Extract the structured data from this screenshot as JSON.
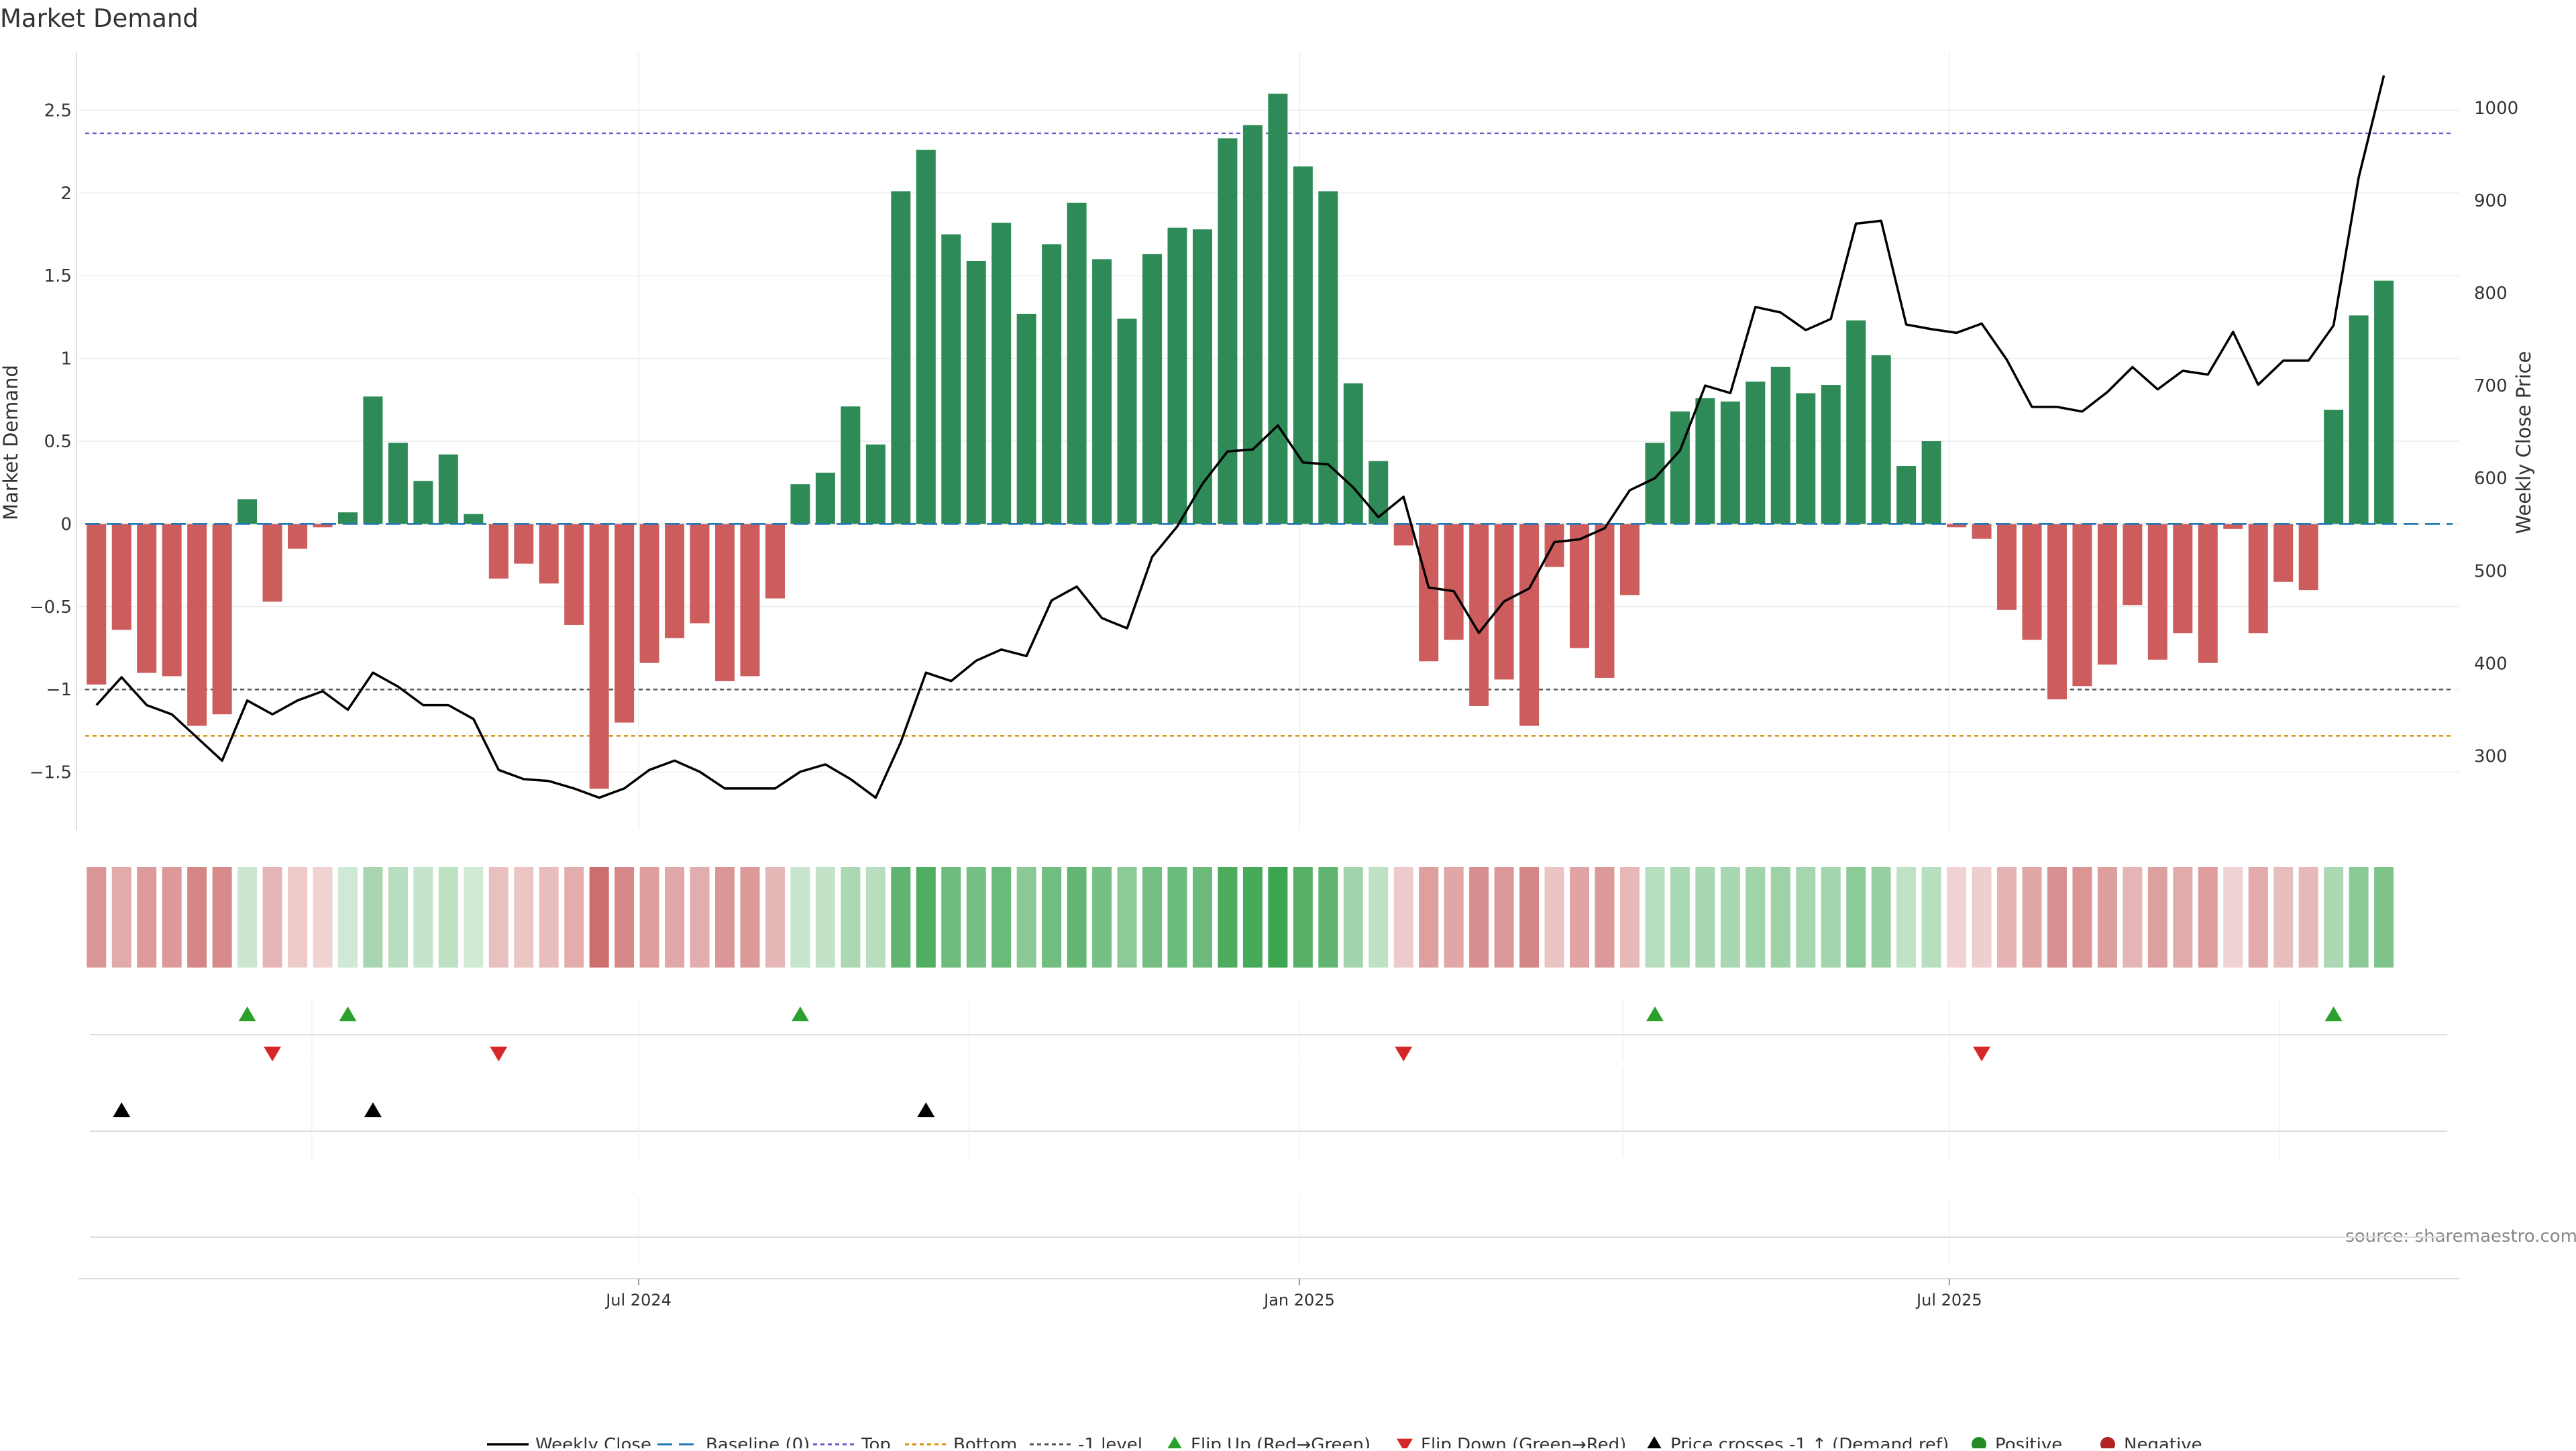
{
  "chart_data": {
    "type": "bar",
    "title": "Market Demand",
    "ylabel_left": "Market Demand",
    "ylabel_right": "Weekly Close Price",
    "source": "source: sharemaestro.com",
    "x_range": [
      "2024-01-27",
      "2025-11-20"
    ],
    "x_ticks": [
      {
        "date": "2024-07-01",
        "label": "Jul 2024"
      },
      {
        "date": "2025-01-01",
        "label": "Jan 2025"
      },
      {
        "date": "2025-07-01",
        "label": "Jul 2025"
      }
    ],
    "weeks": {
      "start": "2024-02-01",
      "step_days": 7,
      "count": 92
    },
    "y_left": {
      "range": [
        -1.85,
        2.85
      ],
      "ticks": [
        -1.5,
        -1,
        -0.5,
        0,
        0.5,
        1,
        1.5,
        2,
        2.5
      ],
      "tick_labels": [
        "−1.5",
        "−1",
        "−0.5",
        "0",
        "0.5",
        "1",
        "1.5",
        "2",
        "2.5"
      ]
    },
    "y_right": {
      "range": [
        220,
        1060
      ],
      "ticks": [
        300,
        400,
        500,
        600,
        700,
        800,
        900,
        1000
      ],
      "tick_labels": [
        "300",
        "400",
        "500",
        "600",
        "700",
        "800",
        "900",
        "1000"
      ]
    },
    "demand": [
      -0.97,
      -0.64,
      -0.9,
      -0.92,
      -1.22,
      -1.15,
      0.15,
      -0.47,
      -0.15,
      -0.02,
      0.07,
      0.77,
      0.49,
      0.26,
      0.42,
      0.06,
      -0.33,
      -0.24,
      -0.36,
      -0.61,
      -1.6,
      -1.2,
      -0.84,
      -0.69,
      -0.6,
      -0.95,
      -0.92,
      -0.45,
      0.24,
      0.31,
      0.71,
      0.48,
      2.01,
      2.26,
      1.75,
      1.59,
      1.82,
      1.27,
      1.69,
      1.94,
      1.6,
      1.24,
      1.63,
      1.79,
      1.78,
      2.33,
      2.41,
      2.6,
      2.16,
      2.01,
      0.85,
      0.38,
      -0.13,
      -0.83,
      -0.7,
      -1.1,
      -0.94,
      -1.22,
      -0.26,
      -0.75,
      -0.93,
      -0.43,
      0.49,
      0.68,
      0.76,
      0.74,
      0.86,
      0.95,
      0.79,
      0.84,
      1.23,
      1.02,
      0.35,
      0.5,
      -0.02,
      -0.09,
      -0.52,
      -0.7,
      -1.06,
      -0.98,
      -0.85,
      -0.49,
      -0.82,
      -0.66,
      -0.84,
      -0.03,
      -0.66,
      -0.35,
      -0.4,
      0.69,
      1.26,
      1.47
    ],
    "weekly_close": [
      355,
      385,
      355,
      345,
      320,
      295,
      360,
      345,
      360,
      370,
      350,
      390,
      375,
      355,
      355,
      340,
      285,
      275,
      273,
      265,
      255,
      265,
      285,
      295,
      283,
      265,
      265,
      265,
      283,
      291,
      275,
      255,
      315,
      390,
      381,
      403,
      415,
      408,
      468,
      483,
      449,
      438,
      515,
      548,
      594,
      629,
      631,
      657,
      617,
      615,
      590,
      558,
      580,
      482,
      478,
      433,
      467,
      481,
      531,
      534,
      546,
      587,
      600,
      630,
      700,
      692,
      785,
      779,
      760,
      772,
      875,
      878,
      766,
      761,
      757,
      767,
      728,
      677,
      677,
      672,
      693,
      720,
      696,
      716,
      712,
      758,
      701,
      727,
      727,
      765,
      925,
      1035
    ],
    "reference_lines": [
      {
        "name": "Baseline (0)",
        "value": 0,
        "color": "#1f77b4"
      },
      {
        "name": "Top",
        "value": 2.36,
        "color": "#6a5acd"
      },
      {
        "name": "Bottom",
        "value": -1.28,
        "color": "#d4900a"
      },
      {
        "name": "-1 level",
        "value": -1,
        "color": "#555555"
      }
    ],
    "flip_up_weeks": [
      6,
      10,
      28,
      62,
      89
    ],
    "flip_down_weeks": [
      7,
      16,
      52,
      75
    ],
    "price_cross_weeks": [
      1,
      11,
      33
    ],
    "colors": {
      "positive": "#2e8b57",
      "negative": "#cd5c5c",
      "price_line": "#000000",
      "flip_up": "#2ca02c",
      "flip_down": "#d62728",
      "cross": "#000000",
      "positive_dot": "#228b22",
      "negative_dot": "#b22222"
    },
    "legend": [
      {
        "key": "weekly-close",
        "label": "Weekly Close"
      },
      {
        "key": "baseline",
        "label": "Baseline (0)"
      },
      {
        "key": "top",
        "label": "Top"
      },
      {
        "key": "bottom",
        "label": "Bottom"
      },
      {
        "key": "minus1",
        "label": "-1 level"
      },
      {
        "key": "flip-up",
        "label": "Flip Up (Red→Green)"
      },
      {
        "key": "flip-down",
        "label": "Flip Down (Green→Red)"
      },
      {
        "key": "price-cross",
        "label": "Price crosses -1 ↑ (Demand ref)"
      },
      {
        "key": "positive",
        "label": "Positive"
      },
      {
        "key": "negative",
        "label": "Negative"
      }
    ],
    "legend_placement": "bottom-center",
    "grid": true
  }
}
